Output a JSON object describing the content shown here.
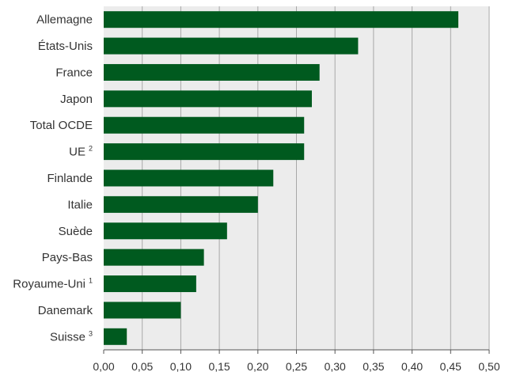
{
  "chart_data": {
    "type": "bar",
    "orientation": "horizontal",
    "title": "",
    "xlabel": "",
    "ylabel": "",
    "categories": [
      {
        "label": "Allemagne",
        "note": ""
      },
      {
        "label": "États-Unis",
        "note": ""
      },
      {
        "label": "France",
        "note": ""
      },
      {
        "label": "Japon",
        "note": ""
      },
      {
        "label": "Total OCDE",
        "note": ""
      },
      {
        "label": "UE",
        "note": "2"
      },
      {
        "label": "Finlande",
        "note": ""
      },
      {
        "label": "Italie",
        "note": ""
      },
      {
        "label": "Suède",
        "note": ""
      },
      {
        "label": "Pays-Bas",
        "note": ""
      },
      {
        "label": "Royaume-Uni",
        "note": "1"
      },
      {
        "label": "Danemark",
        "note": ""
      },
      {
        "label": "Suisse",
        "note": "3"
      }
    ],
    "values": [
      0.46,
      0.33,
      0.28,
      0.27,
      0.26,
      0.26,
      0.22,
      0.2,
      0.16,
      0.13,
      0.12,
      0.1,
      0.03
    ],
    "xlim": [
      0,
      0.5
    ],
    "xticks": [
      0,
      0.05,
      0.1,
      0.15,
      0.2,
      0.25,
      0.3,
      0.35,
      0.4,
      0.45,
      0.5
    ],
    "xtick_labels": [
      "0,00",
      "0,05",
      "0,10",
      "0,15",
      "0,20",
      "0,25",
      "0,30",
      "0,35",
      "0,40",
      "0,45",
      "0,50"
    ],
    "grid": "vertical",
    "legend": "none",
    "colors": {
      "bar": "#005a1f",
      "plot_background": "#ececec",
      "grid": "#a8a8a8",
      "axis": "#555555",
      "text": "#333333"
    }
  }
}
